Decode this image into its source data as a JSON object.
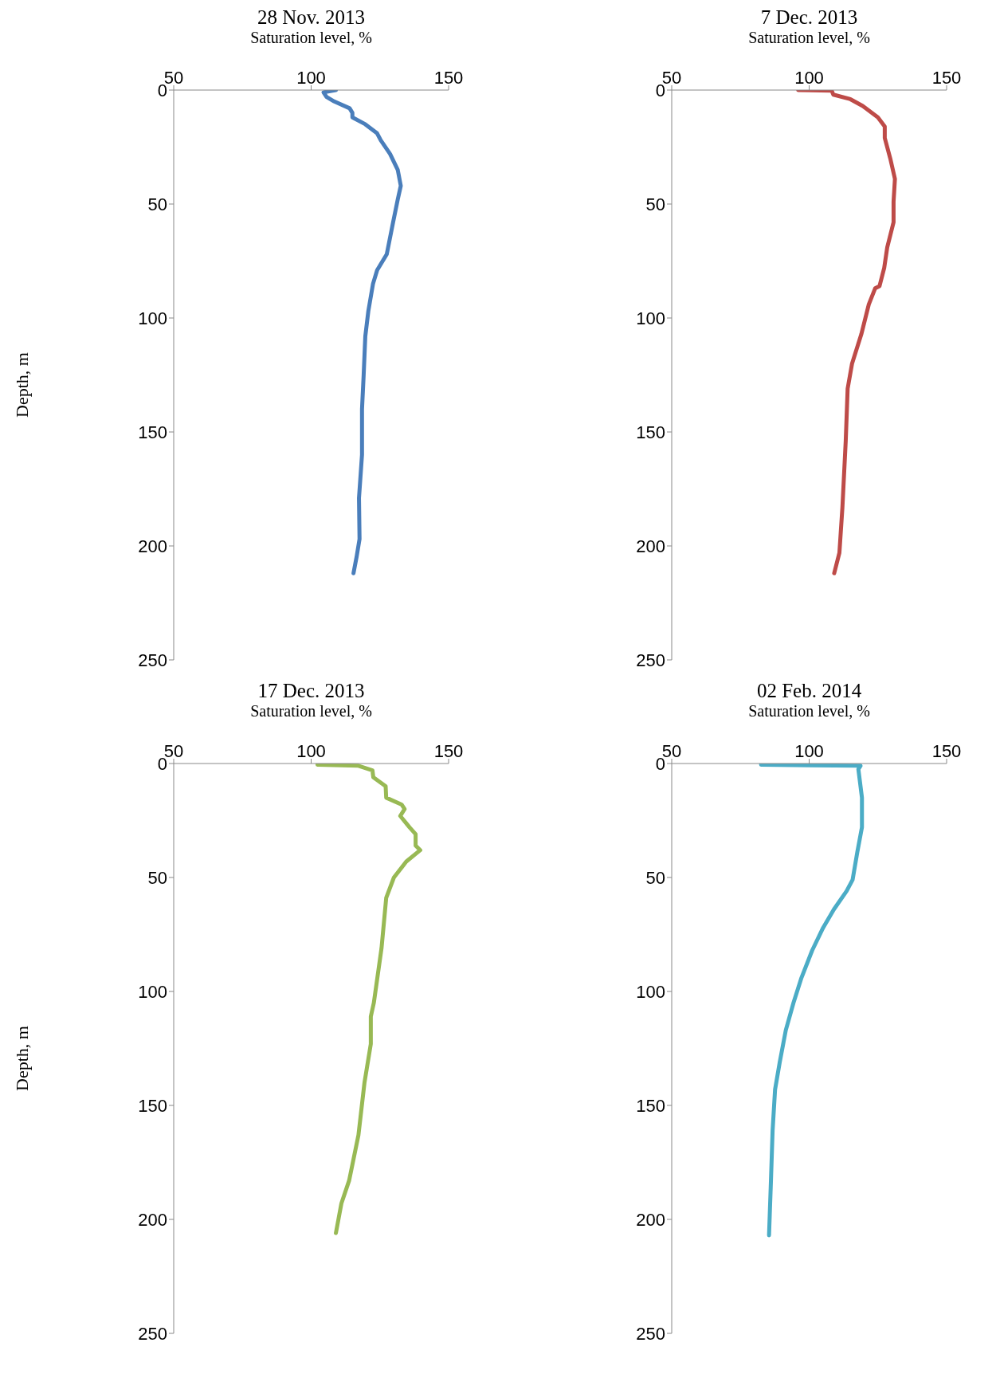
{
  "chart_data": [
    {
      "type": "line",
      "title": "28 Nov. 2013",
      "xlabel": "Saturation level, %",
      "ylabel": "Depth, m",
      "xlim": [
        50,
        150
      ],
      "xticks": [
        50,
        100,
        150
      ],
      "ylim": [
        250,
        0
      ],
      "yticks": [
        0,
        50,
        100,
        150,
        200,
        250
      ],
      "grid": false,
      "legend": false,
      "marker": "none",
      "line_style": "solid",
      "series": [
        {
          "color": "#4a7ebb",
          "x": [
            109,
            104.5,
            105.6,
            108.4,
            114,
            115,
            115,
            119.7,
            124,
            125.3,
            128.7,
            131.5,
            132.6,
            131.5,
            129.8,
            127.5,
            124,
            122.5,
            120.8,
            119.7,
            119.1,
            118.5,
            118.5,
            117.4,
            117.6,
            116.5,
            115.4
          ],
          "values": [
            0,
            1,
            3,
            5,
            8,
            10,
            12,
            15,
            19,
            22,
            28,
            35,
            42,
            48,
            58,
            72,
            79,
            85,
            97,
            108,
            125,
            140,
            160,
            179,
            197,
            205,
            212
          ]
        }
      ]
    },
    {
      "type": "line",
      "title": "7 Dec. 2013",
      "xlabel": "Saturation level, %",
      "xlim": [
        50,
        150
      ],
      "xticks": [
        50,
        100,
        150
      ],
      "ylim": [
        250,
        0
      ],
      "yticks": [
        0,
        50,
        100,
        150,
        200,
        250
      ],
      "grid": false,
      "legend": false,
      "marker": "none",
      "line_style": "solid",
      "series": [
        {
          "color": "#be4b48",
          "x": [
            96,
            108.2,
            108.8,
            115,
            119.5,
            125,
            127.5,
            127.5,
            129.5,
            131.2,
            130.7,
            130.7,
            128.4,
            127.3,
            125.6,
            124,
            121.7,
            119,
            115.6,
            114,
            113.3,
            112.1,
            111,
            109.1
          ],
          "values": [
            0,
            0.3,
            2,
            4,
            7,
            12,
            16,
            21,
            30,
            39,
            49,
            58,
            69,
            78,
            86,
            87,
            94,
            107,
            120,
            131,
            154,
            183,
            203,
            212
          ]
        }
      ]
    },
    {
      "type": "line",
      "title": "17 Dec. 2013",
      "xlabel": "Saturation level, %",
      "ylabel": "Depth, m",
      "xlim": [
        50,
        150
      ],
      "xticks": [
        50,
        100,
        150
      ],
      "ylim": [
        250,
        0
      ],
      "yticks": [
        0,
        50,
        100,
        150,
        200,
        250
      ],
      "grid": false,
      "legend": false,
      "marker": "none",
      "line_style": "solid",
      "series": [
        {
          "color": "#98b954",
          "x": [
            102.3,
            117.2,
            122.3,
            122.6,
            127.1,
            127.3,
            132.9,
            134,
            132.4,
            135.8,
            138,
            138,
            139.7,
            134.6,
            130.1,
            127.3,
            125.6,
            122.8,
            121.7,
            121.7,
            119.4,
            117.2,
            113.8,
            111,
            109
          ],
          "values": [
            0.5,
            1,
            3,
            6,
            10,
            15,
            18,
            20,
            23,
            28,
            31,
            36,
            38,
            43,
            50,
            59,
            81,
            105,
            111,
            123,
            140,
            163,
            183,
            193,
            206
          ]
        }
      ]
    },
    {
      "type": "line",
      "title": "02 Feb. 2014",
      "xlabel": "Saturation level, %",
      "xlim": [
        50,
        150
      ],
      "xticks": [
        50,
        100,
        150
      ],
      "ylim": [
        250,
        0
      ],
      "yticks": [
        0,
        50,
        100,
        150,
        200,
        250
      ],
      "grid": false,
      "legend": false,
      "marker": "none",
      "line_style": "solid",
      "series": [
        {
          "color": "#4bacc6",
          "x": [
            82.5,
            118.7,
            117.9,
            119.2,
            119.2,
            117.5,
            115.8,
            113.6,
            109,
            105.1,
            101.1,
            97.2,
            94.3,
            91.5,
            89.3,
            87.6,
            86.7,
            86.1,
            85.4
          ],
          "values": [
            0.5,
            1,
            2.5,
            15,
            28,
            39,
            51,
            56,
            64,
            72,
            82,
            94,
            105,
            117,
            131,
            143,
            161,
            183,
            207
          ]
        }
      ]
    }
  ]
}
